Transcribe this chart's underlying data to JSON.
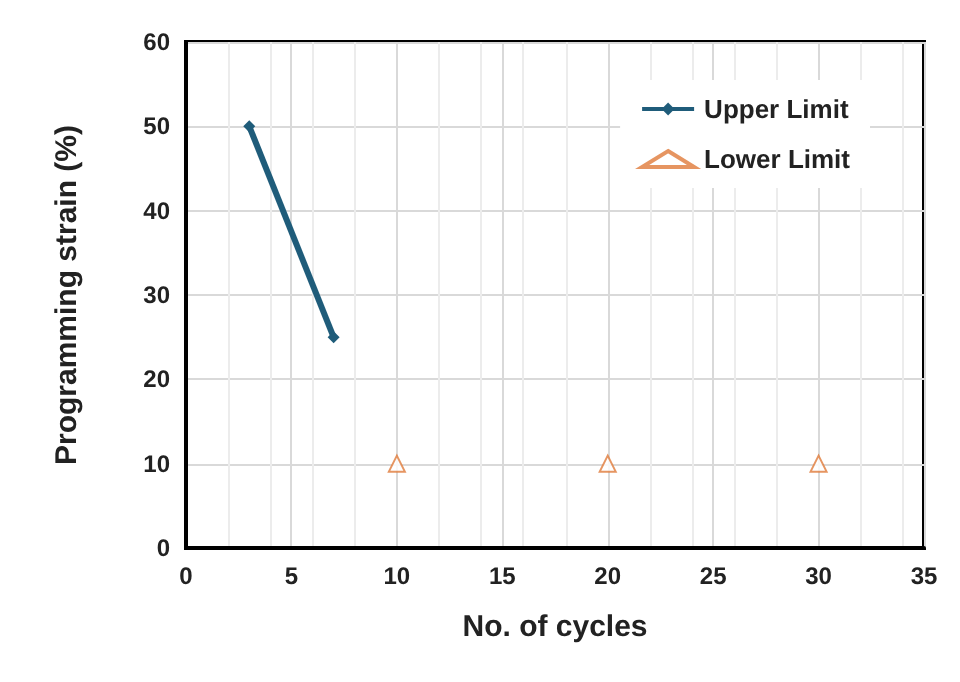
{
  "chart_data": {
    "type": "line",
    "xlabel": "No. of cycles",
    "ylabel": "Programming strain (%)",
    "series": [
      {
        "name": "Upper Limit",
        "color": "#1f5c7a",
        "x": [
          3,
          7
        ],
        "values": [
          50,
          25
        ],
        "marker": "diamond"
      },
      {
        "name": "Lower Limit",
        "type": "scatter",
        "color": "#e07b39",
        "x": [
          10,
          20,
          30
        ],
        "values": [
          10,
          10,
          10
        ],
        "marker": "triangle"
      }
    ],
    "xlim": [
      0,
      35
    ],
    "xticks": [
      0,
      5,
      10,
      15,
      20,
      25,
      30,
      35
    ],
    "ylim": [
      0,
      60
    ],
    "yticks": [
      0,
      10,
      20,
      30,
      40,
      50,
      60
    ],
    "grid": true,
    "legend": "top right"
  }
}
